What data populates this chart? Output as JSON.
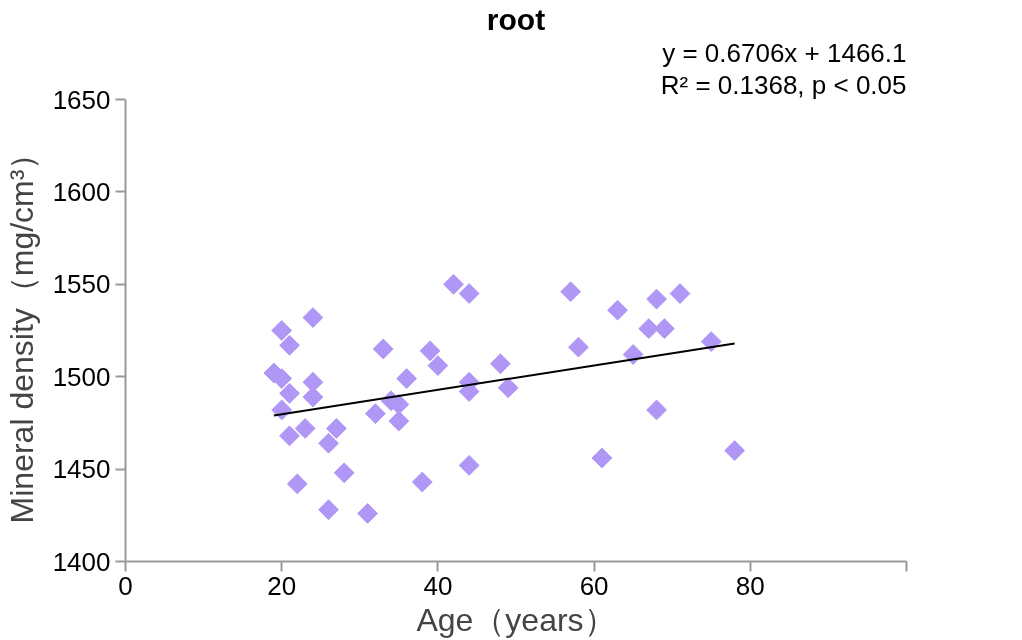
{
  "chart_data": {
    "type": "scatter",
    "title": "root",
    "xlabel": "Age（years）",
    "ylabel": "Mineral density（mg/cm³）",
    "annotations": [
      "y = 0.6706x + 1466.1",
      "R² = 0.1368, p < 0.05"
    ],
    "xlim": [
      0,
      100
    ],
    "xticks": [
      0,
      20,
      40,
      60,
      80,
      {
        "value": 100,
        "label": null
      }
    ],
    "ylim": [
      1400,
      1650
    ],
    "yticks": [
      1400,
      1450,
      1500,
      1550,
      1600,
      1650
    ],
    "grid": false,
    "marker": "diamond",
    "series": [
      {
        "color": "#b197f5",
        "x": [
          20,
          21,
          24,
          19,
          20,
          21,
          24,
          24,
          20,
          23,
          21,
          27,
          26,
          22,
          28,
          26,
          31,
          33,
          32,
          34,
          35,
          35,
          36,
          38,
          39,
          40,
          42,
          44,
          44,
          44,
          44,
          48,
          49,
          57,
          58,
          61,
          63,
          65,
          67,
          68,
          68,
          69,
          71,
          75,
          78
        ],
        "values": [
          1525,
          1517,
          1532,
          1502,
          1499,
          1491,
          1497,
          1489,
          1482,
          1472,
          1468,
          1472,
          1464,
          1442,
          1448,
          1428,
          1426,
          1515,
          1480,
          1487,
          1485,
          1476,
          1499,
          1443,
          1514,
          1506,
          1550,
          1545,
          1497,
          1492,
          1452,
          1507,
          1494,
          1546,
          1516,
          1456,
          1536,
          1512,
          1526,
          1542,
          1482,
          1526,
          1545,
          1519,
          1460
        ]
      },
      {
        "type": "line",
        "color": "#000000",
        "marker": "none",
        "x": [
          19,
          78
        ],
        "values": [
          1479,
          1518
        ]
      }
    ]
  }
}
